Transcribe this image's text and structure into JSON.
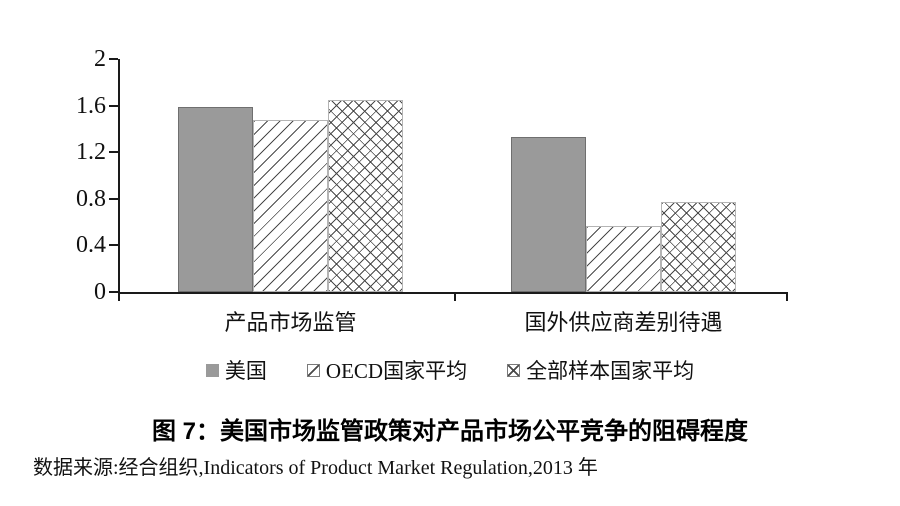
{
  "chart_data": {
    "type": "bar",
    "title": "图 7：美国市场监管政策对产品市场公平竞争的阻碍程度",
    "source": "数据来源:经合组织,Indicators of Product Market Regulation,2013 年",
    "categories": [
      "产品市场监管",
      "国外供应商差别待遇"
    ],
    "series": [
      {
        "name": "美国",
        "pattern": "solid",
        "values": [
          1.59,
          1.33
        ]
      },
      {
        "name": "OECD国家平均",
        "pattern": "diagonal",
        "values": [
          1.48,
          0.57
        ]
      },
      {
        "name": "全部样本国家平均",
        "pattern": "crosshatch",
        "values": [
          1.65,
          0.77
        ]
      }
    ],
    "ylim": [
      0,
      2
    ],
    "ytick_labels": [
      "2",
      "1.6",
      "1.2",
      "0.8",
      "0.4",
      "0"
    ],
    "ytick_values": [
      2,
      1.6,
      1.2,
      0.8,
      0.4,
      0
    ],
    "xlabel": "",
    "ylabel": "",
    "grid": false,
    "legend_position": "bottom",
    "colors": {
      "bar_fill": "#9a9a9a",
      "bar_border": "#6f6f6f",
      "hatch_line": "#4a4a4a",
      "hatch_border": "#b4b4b4",
      "axis": "#1a1a1a"
    }
  }
}
